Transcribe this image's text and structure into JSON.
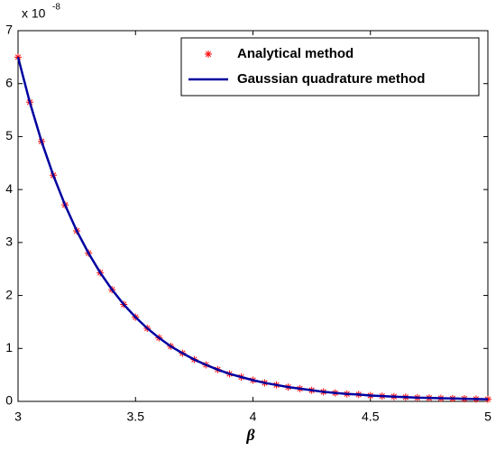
{
  "chart_data": {
    "type": "line",
    "x_label": "β",
    "y_multiplier": {
      "base": "x 10",
      "exponent": "-8"
    },
    "x": [
      3.0,
      3.05,
      3.1,
      3.15,
      3.2,
      3.25,
      3.3,
      3.35,
      3.4,
      3.45,
      3.5,
      3.55,
      3.6,
      3.65,
      3.7,
      3.75,
      3.8,
      3.85,
      3.9,
      3.95,
      4.0,
      4.05,
      4.1,
      4.15,
      4.2,
      4.25,
      4.3,
      4.35,
      4.4,
      4.45,
      4.5,
      4.55,
      4.6,
      4.65,
      4.7,
      4.75,
      4.8,
      4.85,
      4.9,
      4.95,
      5.0
    ],
    "series": [
      {
        "name": "Analytical method",
        "color": "#ff0000",
        "marker": "*",
        "values": [
          6.5,
          5.65,
          4.91,
          4.27,
          3.71,
          3.22,
          2.8,
          2.43,
          2.11,
          1.83,
          1.59,
          1.38,
          1.2,
          1.04,
          0.91,
          0.79,
          0.69,
          0.6,
          0.52,
          0.46,
          0.4,
          0.35,
          0.31,
          0.27,
          0.24,
          0.21,
          0.18,
          0.16,
          0.14,
          0.13,
          0.11,
          0.1,
          0.09,
          0.08,
          0.07,
          0.065,
          0.06,
          0.055,
          0.05,
          0.045,
          0.04
        ]
      },
      {
        "name": "Gaussian quadrature method",
        "color": "#0000a0",
        "marker": "none",
        "values": [
          6.5,
          5.65,
          4.91,
          4.27,
          3.71,
          3.22,
          2.8,
          2.43,
          2.11,
          1.83,
          1.59,
          1.38,
          1.2,
          1.04,
          0.91,
          0.79,
          0.69,
          0.6,
          0.52,
          0.46,
          0.4,
          0.35,
          0.31,
          0.27,
          0.24,
          0.21,
          0.18,
          0.16,
          0.14,
          0.13,
          0.11,
          0.1,
          0.09,
          0.08,
          0.07,
          0.065,
          0.06,
          0.055,
          0.05,
          0.045,
          0.04
        ]
      }
    ],
    "xlim": [
      3,
      5
    ],
    "xticks": [
      3,
      3.5,
      4,
      4.5,
      5
    ],
    "ylim": [
      0,
      7
    ],
    "yticks": [
      0,
      1,
      2,
      3,
      4,
      5,
      6,
      7
    ],
    "grid": false,
    "legend": "upper right"
  }
}
